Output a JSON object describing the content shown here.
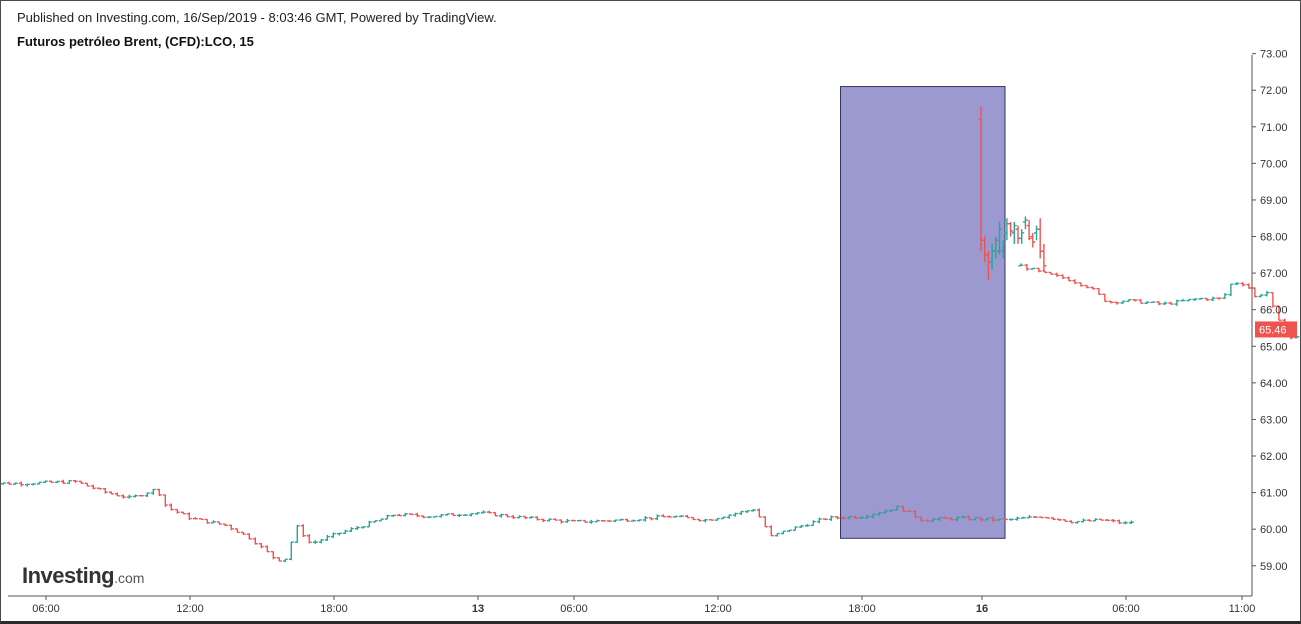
{
  "header": {
    "published": "Published on Investing.com, 16/Sep/2019 - 8:03:46 GMT, Powered by TradingView.",
    "symbol": "Futuros petróleo Brent, (CFD):LCO, 15"
  },
  "logo": {
    "main": "Investing",
    "suffix": ".com"
  },
  "colors": {
    "up": "#26a69a",
    "down": "#ef5350",
    "highlight_fill": "#9b99cf",
    "highlight_stroke": "#333366",
    "axis": "#555555",
    "price_tag": "#ef5350"
  },
  "chart_data": {
    "type": "ohlc",
    "interval": "15 min",
    "x_axis_labels": [
      "06:00",
      "12:00",
      "18:00",
      "13",
      "06:00",
      "12:00",
      "18:00",
      "16",
      "06:00",
      "11:00"
    ],
    "y_axis_labels": [
      "59.00",
      "60.00",
      "61.00",
      "62.00",
      "63.00",
      "64.00",
      "65.00",
      "66.00",
      "67.00",
      "68.00",
      "69.00",
      "70.00",
      "71.00",
      "72.00",
      "73.00"
    ],
    "ylim": [
      58.3,
      73.2
    ],
    "last_price": "65.46",
    "highlight": {
      "from": "15:00 (Sep 13)",
      "to": "~01:30 (Sep 16)",
      "price_range": [
        59.75,
        72.1
      ]
    },
    "anchors": [
      {
        "h": 3.2,
        "p": 61.25
      },
      {
        "h": 5.0,
        "p": 61.25
      },
      {
        "h": 7.2,
        "p": 61.3
      },
      {
        "h": 8.5,
        "p": 61.0
      },
      {
        "h": 9.5,
        "p": 60.85
      },
      {
        "h": 10.6,
        "p": 61.1
      },
      {
        "h": 11.0,
        "p": 60.6
      },
      {
        "h": 12.0,
        "p": 60.3
      },
      {
        "h": 13.5,
        "p": 60.1
      },
      {
        "h": 14.5,
        "p": 59.75
      },
      {
        "h": 15.6,
        "p": 59.15
      },
      {
        "h": 16.0,
        "p": 59.2
      },
      {
        "h": 16.4,
        "p": 60.1
      },
      {
        "h": 17.0,
        "p": 59.6
      },
      {
        "h": 18.0,
        "p": 59.85
      },
      {
        "h": 19.2,
        "p": 60.1
      },
      {
        "h": 20.5,
        "p": 60.4
      },
      {
        "h": 22.0,
        "p": 60.35
      },
      {
        "h": 24.0,
        "p": 60.45
      },
      {
        "h": 26.0,
        "p": 60.3
      },
      {
        "h": 28.0,
        "p": 60.2
      },
      {
        "h": 30.0,
        "p": 60.25
      },
      {
        "h": 32.0,
        "p": 60.35
      },
      {
        "h": 33.5,
        "p": 60.25
      },
      {
        "h": 35.5,
        "p": 60.55
      },
      {
        "h": 36.2,
        "p": 59.8
      },
      {
        "h": 37.0,
        "p": 60.0
      },
      {
        "h": 38.5,
        "p": 60.3
      },
      {
        "h": 40.0,
        "p": 60.35
      },
      {
        "h": 41.5,
        "p": 60.6
      },
      {
        "h": 42.5,
        "p": 60.25
      },
      {
        "h": 44.0,
        "p": 60.3
      },
      {
        "h": 46.0,
        "p": 60.25
      },
      {
        "h": 47.5,
        "p": 60.35
      },
      {
        "h": 48.8,
        "p": 60.2
      },
      {
        "h": 50.0,
        "p": 60.25
      },
      {
        "h": 51.0,
        "p": 60.15
      },
      {
        "h": 51.2,
        "p": 60.2
      }
    ],
    "sep16_bars": [
      {
        "o": 71.2,
        "h": 71.55,
        "l": 67.6,
        "c": 67.9
      },
      {
        "o": 67.9,
        "h": 68.0,
        "l": 67.3,
        "c": 67.5
      },
      {
        "o": 67.5,
        "h": 67.6,
        "l": 66.8,
        "c": 67.3
      },
      {
        "o": 67.3,
        "h": 67.8,
        "l": 67.1,
        "c": 67.6
      },
      {
        "o": 67.6,
        "h": 68.0,
        "l": 67.4,
        "c": 67.9
      },
      {
        "o": 67.6,
        "h": 68.4,
        "l": 67.5,
        "c": 68.2
      },
      {
        "o": 67.6,
        "h": 67.9,
        "l": 67.4,
        "c": 67.8
      },
      {
        "o": 68.1,
        "h": 68.5,
        "l": 67.9,
        "c": 68.35
      },
      {
        "o": 68.35,
        "h": 68.4,
        "l": 68.0,
        "c": 68.15
      },
      {
        "o": 68.1,
        "h": 68.4,
        "l": 67.8,
        "c": 68.3
      },
      {
        "o": 68.2,
        "h": 68.3,
        "l": 67.8,
        "c": 67.95
      },
      {
        "o": 67.95,
        "h": 68.2,
        "l": 67.8,
        "c": 68.1
      },
      {
        "o": 68.4,
        "h": 68.55,
        "l": 68.2,
        "c": 68.45
      },
      {
        "o": 68.3,
        "h": 68.45,
        "l": 67.9,
        "c": 67.95
      },
      {
        "o": 68.0,
        "h": 68.1,
        "l": 67.7,
        "c": 67.85
      },
      {
        "o": 68.1,
        "h": 68.3,
        "l": 67.9,
        "c": 68.2
      },
      {
        "o": 68.2,
        "h": 68.5,
        "l": 67.4,
        "c": 67.6
      },
      {
        "o": 67.6,
        "h": 67.8,
        "l": 67.05,
        "c": 67.2
      }
    ],
    "sep16_anchors": [
      {
        "h": 4.6,
        "p": 67.2
      },
      {
        "h": 5.5,
        "p": 67.0
      },
      {
        "h": 6.5,
        "p": 66.85
      },
      {
        "h": 7.5,
        "p": 66.6
      },
      {
        "h": 8.2,
        "p": 66.2
      },
      {
        "h": 9.0,
        "p": 66.25
      },
      {
        "h": 10.5,
        "p": 66.15
      },
      {
        "h": 12.0,
        "p": 66.3
      },
      {
        "h": 13.0,
        "p": 66.3
      },
      {
        "h": 13.4,
        "p": 66.75
      },
      {
        "h": 14.0,
        "p": 66.7
      },
      {
        "h": 14.4,
        "p": 66.3
      },
      {
        "h": 14.8,
        "p": 66.55
      },
      {
        "h": 15.2,
        "p": 65.9
      },
      {
        "h": 15.6,
        "p": 65.3
      },
      {
        "h": 16.0,
        "p": 65.2
      },
      {
        "h": 16.5,
        "p": 65.4
      },
      {
        "h": 16.9,
        "p": 65.7
      },
      {
        "h": 17.2,
        "p": 65.46
      }
    ]
  }
}
